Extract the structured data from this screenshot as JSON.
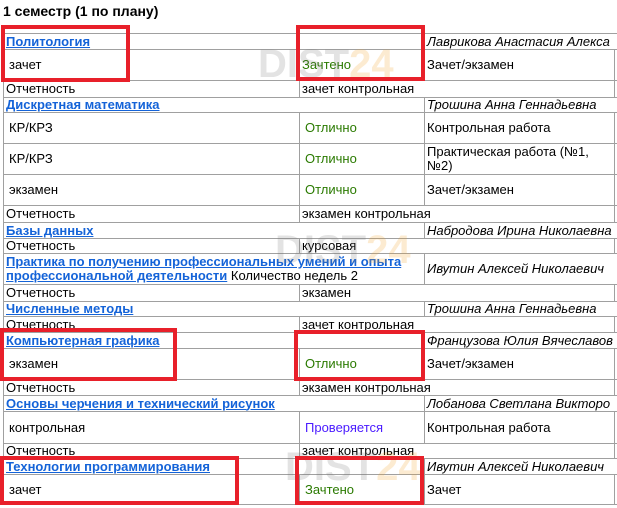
{
  "semester_title": "1 семестр (1 по плану)",
  "watermark": "DIST24",
  "subjects": [
    {
      "name": "Политология",
      "teacher": "Лаврикова Анастасия Алекса",
      "works": [
        {
          "type": "зачет",
          "grade": "Зачтено",
          "grade_status": "passed",
          "form": "Зачет/экзамен"
        }
      ],
      "report_label": "Отчетность",
      "report": "зачет контрольная"
    },
    {
      "name": "Дискретная математика",
      "teacher": "Трошина Анна Геннадьевна",
      "works": [
        {
          "type": "КР/КРЗ",
          "grade": "Отлично",
          "form": "Контрольная работа"
        },
        {
          "type": "КР/КРЗ",
          "grade": "Отлично",
          "form": "Практическая работа (№1, №2)"
        },
        {
          "type": "экзамен",
          "grade": "Отлично",
          "form": "Зачет/экзамен"
        }
      ],
      "report_label": "Отчетность",
      "report": "экзамен контрольная"
    },
    {
      "name": "Базы данных",
      "teacher": "Набродова Ирина Николаевна",
      "works": [],
      "report_label": "Отчетность",
      "report": "курсовая"
    },
    {
      "name": "Практика по получению профессиональных умений и опыта профессиональной деятельности",
      "extra": "Количество недель 2",
      "teacher": "Ивутин Алексей Николаевич",
      "works": [],
      "report_label": "Отчетность",
      "report": "экзамен"
    },
    {
      "name": "Численные методы",
      "teacher": "Трошина Анна Геннадьевна",
      "works": [],
      "report_label": "Отчетность",
      "report": "зачет контрольная"
    },
    {
      "name": "Компьютерная графика",
      "teacher": "Французова Юлия Вячеславов",
      "works": [
        {
          "type": "экзамен",
          "grade": "Отлично",
          "form": "Зачет/экзамен"
        }
      ],
      "report_label": "Отчетность",
      "report": "экзамен контрольная"
    },
    {
      "name": "Основы черчения и технический рисунок",
      "teacher": "Лобанова Светлана Викторо",
      "works": [
        {
          "type": "контрольная",
          "grade": "Проверяется",
          "grade_status": "checking",
          "form": "Контрольная работа"
        }
      ],
      "report_label": "Отчетность",
      "report": "зачет контрольная"
    },
    {
      "name": "Технологии программирования",
      "teacher": "Ивутин Алексей Николаевич",
      "works": [
        {
          "type": "зачет",
          "grade": "Зачтено",
          "form": "Зачет"
        }
      ]
    }
  ],
  "colors": {
    "link": "#1463d8",
    "grade_ok": "#2a7a00",
    "grade_checking": "#4b1cff",
    "highlight": "#e8202a"
  }
}
